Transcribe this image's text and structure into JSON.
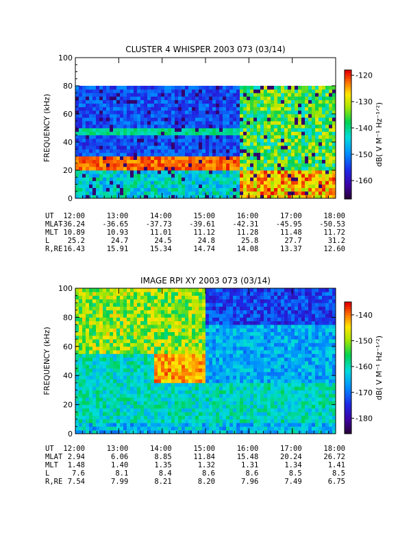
{
  "chart_data": [
    {
      "type": "heatmap",
      "title": "CLUSTER 4 WHISPER 2003 073 (03/14)",
      "ylabel": "FREQUENCY (kHz)",
      "ylim": [
        0,
        100
      ],
      "yticks": [
        "0",
        "20",
        "40",
        "60",
        "80",
        "100"
      ],
      "x": [
        "12:00",
        "13:00",
        "14:00",
        "15:00",
        "16:00",
        "17:00",
        "18:00"
      ],
      "colorbar": {
        "label": "dB( V M⁻¹ Hz⁻¹ᐟ²)",
        "range": [
          -167,
          -118
        ],
        "ticks": [
          "-120",
          "-130",
          "-140",
          "-150",
          "-160"
        ]
      },
      "data_upper_frequency_kHz": 80,
      "features": "intense emission ~20-30 kHz from 12:00 to ~15:50, line near 48 kHz, broadband after 15:50",
      "ephemeris": {
        "labels": [
          "UT",
          "MLAT",
          "MLT",
          "L",
          "R,RE"
        ],
        "rows": [
          [
            "12:00",
            "13:00",
            "14:00",
            "15:00",
            "16:00",
            "17:00",
            "18:00"
          ],
          [
            "-36.24",
            "-36.65",
            "-37.73",
            "-39.61",
            "-42.31",
            "-45.95",
            "-50.53"
          ],
          [
            "10.89",
            "10.93",
            "11.01",
            "11.12",
            "11.28",
            "11.48",
            "11.72"
          ],
          [
            "25.2",
            "24.7",
            "24.5",
            "24.8",
            "25.8",
            "27.7",
            "31.2"
          ],
          [
            "16.43",
            "15.91",
            "15.34",
            "14.74",
            "14.08",
            "13.37",
            "12.60"
          ]
        ]
      }
    },
    {
      "type": "heatmap",
      "title": "IMAGE RPI XY 2003 073 (03/14)",
      "ylabel": "FREQUENCY (kHz)",
      "ylim": [
        0,
        100
      ],
      "yticks": [
        "0",
        "20",
        "40",
        "60",
        "80",
        "100"
      ],
      "x": [
        "12:00",
        "13:00",
        "14:00",
        "15:00",
        "16:00",
        "17:00",
        "18:00"
      ],
      "colorbar": {
        "label": "dB( V M⁻¹ Hz⁻¹ᐟ²)",
        "range": [
          -186,
          -135
        ],
        "ticks": [
          "-140",
          "-150",
          "-160",
          "-170",
          "-180"
        ]
      },
      "features": "enhanced emission 35-55 kHz around 13:30-15:30, weaker after 16:00",
      "ephemeris": {
        "labels": [
          "UT",
          "MLAT",
          "MLT",
          "L",
          "R,RE"
        ],
        "rows": [
          [
            "12:00",
            "13:00",
            "14:00",
            "15:00",
            "16:00",
            "17:00",
            "18:00"
          ],
          [
            "2.94",
            "6.06",
            "8.85",
            "11.84",
            "15.48",
            "20.24",
            "26.72"
          ],
          [
            "1.48",
            "1.40",
            "1.35",
            "1.32",
            "1.31",
            "1.34",
            "1.41"
          ],
          [
            "7.6",
            "8.1",
            "8.4",
            "8.6",
            "8.6",
            "8.5",
            "8.5"
          ],
          [
            "7.54",
            "7.99",
            "8.21",
            "8.20",
            "7.96",
            "7.49",
            "6.75"
          ]
        ]
      }
    }
  ]
}
